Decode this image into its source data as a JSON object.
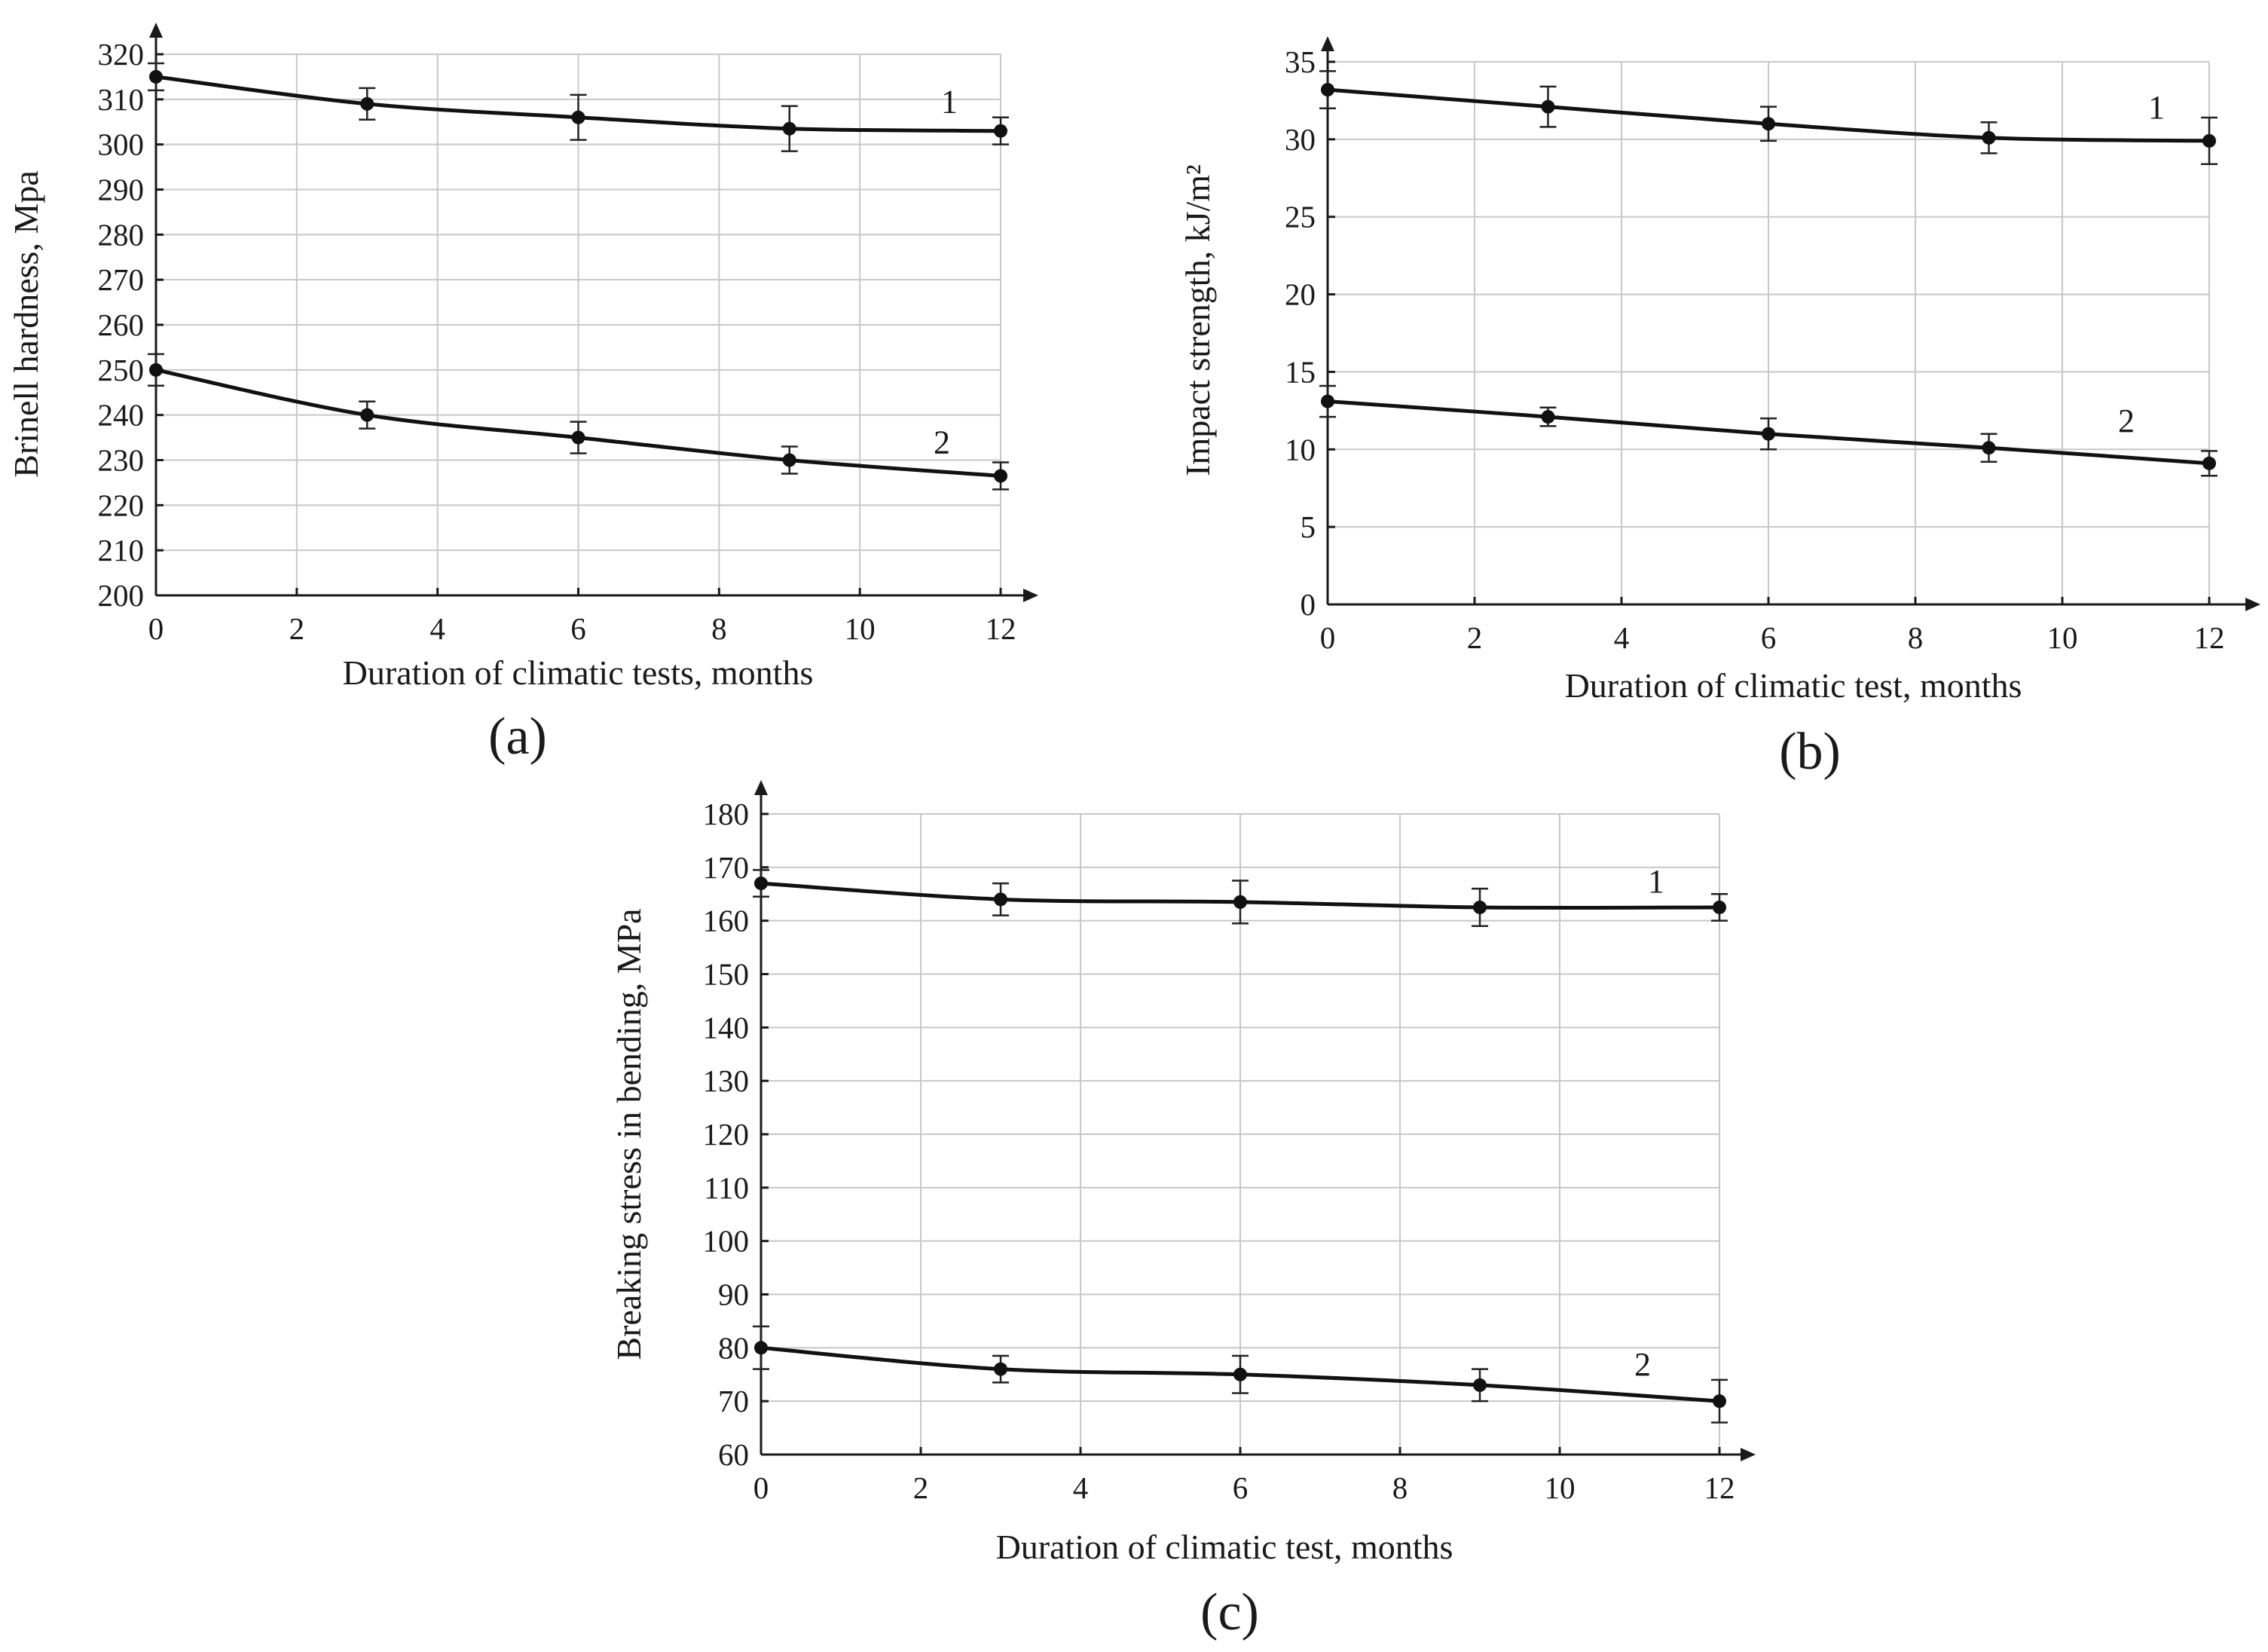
{
  "chart_data": [
    {
      "id": "a",
      "type": "line",
      "panel_label": "(a)",
      "xlabel": "Duration of climatic tests, months",
      "ylabel": "Brinell hardness, Mpa",
      "xlim": [
        0,
        12
      ],
      "ylim": [
        200,
        320
      ],
      "xticks": [
        0,
        2,
        4,
        6,
        8,
        10,
        12
      ],
      "yticks": [
        200,
        210,
        220,
        230,
        240,
        250,
        260,
        270,
        280,
        290,
        300,
        310,
        320
      ],
      "grid": true,
      "series": [
        {
          "name": "1",
          "x": [
            0,
            3,
            6,
            9,
            12
          ],
          "values": [
            315,
            309,
            306,
            303.5,
            303
          ],
          "errors": [
            3,
            3.5,
            5,
            5,
            3
          ]
        },
        {
          "name": "2",
          "x": [
            0,
            3,
            6,
            9,
            12
          ],
          "values": [
            250,
            240,
            235,
            230,
            226.5
          ],
          "errors": [
            3.5,
            3,
            3.5,
            3,
            3
          ]
        }
      ]
    },
    {
      "id": "b",
      "type": "line",
      "panel_label": "(b)",
      "xlabel": "Duration of climatic test, months",
      "ylabel": "Impact strength, kJ/m²",
      "xlim": [
        0,
        12
      ],
      "ylim": [
        0,
        35
      ],
      "xticks": [
        0,
        2,
        4,
        6,
        8,
        10,
        12
      ],
      "yticks": [
        0,
        5,
        10,
        15,
        20,
        25,
        30,
        35
      ],
      "grid": true,
      "series": [
        {
          "name": "1",
          "x": [
            0,
            3,
            6,
            9,
            12
          ],
          "values": [
            33.2,
            32.1,
            31,
            30.1,
            29.9
          ],
          "errors": [
            1.2,
            1.3,
            1.1,
            1,
            1.5
          ]
        },
        {
          "name": "2",
          "x": [
            0,
            3,
            6,
            9,
            12
          ],
          "values": [
            13.1,
            12.1,
            11,
            10.1,
            9.1
          ],
          "errors": [
            1,
            0.6,
            1,
            0.9,
            0.8
          ]
        }
      ]
    },
    {
      "id": "c",
      "type": "line",
      "panel_label": "(c)",
      "xlabel": "Duration of climatic test, months",
      "ylabel": "Breaking stress in bending, MPa",
      "xlim": [
        0,
        12
      ],
      "ylim": [
        60,
        180
      ],
      "xticks": [
        0,
        2,
        4,
        6,
        8,
        10,
        12
      ],
      "yticks": [
        60,
        70,
        80,
        90,
        100,
        110,
        120,
        130,
        140,
        150,
        160,
        170,
        180
      ],
      "grid": true,
      "series": [
        {
          "name": "1",
          "x": [
            0,
            3,
            6,
            9,
            12
          ],
          "values": [
            167,
            164,
            163.5,
            162.5,
            162.5
          ],
          "errors": [
            2.5,
            3,
            4,
            3.5,
            2.5
          ]
        },
        {
          "name": "2",
          "x": [
            0,
            3,
            6,
            9,
            12
          ],
          "values": [
            80,
            76,
            75,
            73,
            70
          ],
          "errors": [
            4,
            2.5,
            3.5,
            3,
            4
          ]
        }
      ]
    }
  ]
}
